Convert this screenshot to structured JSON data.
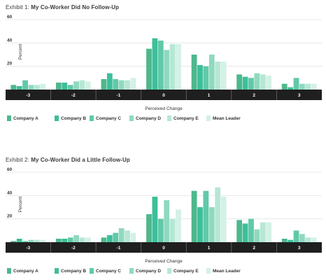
{
  "colors": {
    "series": [
      "#4db88c",
      "#3cbf9a",
      "#60c9a8",
      "#8fd9bf",
      "#b6e7d5",
      "#d3f1e5"
    ],
    "axis_band": "#1f1f1f",
    "grid": "#e3e3e3"
  },
  "chart_data": [
    {
      "type": "bar",
      "title_prefix": "Exhibit 1: ",
      "title": "My Co-Worker Did No Follow-Up",
      "xlabel": "Perceived Change",
      "ylabel": "Percent",
      "ylim": [
        0,
        60
      ],
      "yticks": [
        20,
        40,
        60
      ],
      "grid": true,
      "legend_position": "bottom",
      "categories": [
        "-3",
        "-2",
        "-1",
        "0",
        "1",
        "2",
        "3"
      ],
      "series": [
        {
          "name": "Company A",
          "values": [
            4,
            6,
            9,
            35,
            30,
            13,
            5
          ]
        },
        {
          "name": "Company B",
          "values": [
            3,
            6,
            14,
            44,
            21,
            11,
            2
          ]
        },
        {
          "name": "Company C",
          "values": [
            8,
            4,
            9,
            42,
            20,
            10,
            10
          ]
        },
        {
          "name": "Company D",
          "values": [
            4,
            7,
            8,
            34,
            30,
            14,
            5
          ]
        },
        {
          "name": "Company E",
          "values": [
            4,
            8,
            8,
            39,
            24,
            13,
            5
          ]
        },
        {
          "name": "Mean Leader",
          "values": [
            5,
            7,
            10,
            39,
            24,
            12,
            5
          ]
        }
      ]
    },
    {
      "type": "bar",
      "title_prefix": "Exhibit 2: ",
      "title": "My Co-Worker Did a Little Follow-Up",
      "xlabel": "Perceived Change",
      "ylabel": "Percent",
      "ylim": [
        0,
        60
      ],
      "yticks": [
        20,
        40,
        60
      ],
      "grid": true,
      "legend_position": "bottom",
      "categories": [
        "-3",
        "-2",
        "-1",
        "0",
        "1",
        "2",
        "3"
      ],
      "series": [
        {
          "name": "Company A",
          "values": [
            1,
            3,
            4,
            24,
            44,
            19,
            3
          ]
        },
        {
          "name": "Company B",
          "values": [
            3,
            3,
            6,
            39,
            30,
            16,
            2
          ]
        },
        {
          "name": "Company C",
          "values": [
            1,
            4,
            8,
            20,
            44,
            20,
            10
          ]
        },
        {
          "name": "Company D",
          "values": [
            2,
            6,
            12,
            36,
            30,
            11,
            7
          ]
        },
        {
          "name": "Company E",
          "values": [
            2,
            4,
            10,
            20,
            47,
            17,
            4
          ]
        },
        {
          "name": "Mean Leader",
          "values": [
            2,
            4,
            8,
            28,
            39,
            17,
            4
          ]
        }
      ]
    }
  ]
}
